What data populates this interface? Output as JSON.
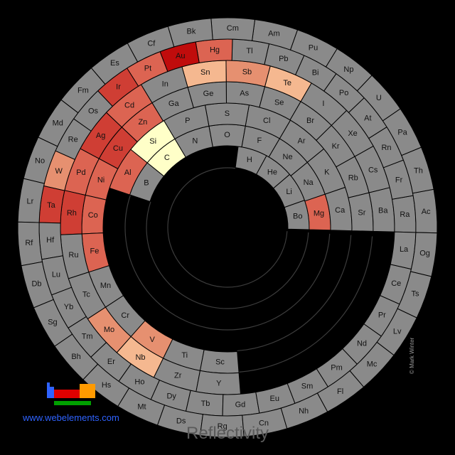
{
  "title": "Reflectivity",
  "site": "www.webelements.com",
  "credit": "© Mark Winter",
  "colors": {
    "no_data": "#8a8a8a",
    "level_1": "#ffffc8",
    "level_2": "#f5b890",
    "level_3": "#e69070",
    "level_4": "#dc6452",
    "level_5": "#cf3e34",
    "level_6": "#c00c0c"
  },
  "icons": [
    "periodic-table-logo-icon"
  ],
  "rings": [
    [
      "Bo",
      "Li",
      "He",
      "H"
    ],
    [
      "Mg",
      "Na",
      "Ne",
      "F",
      "O",
      "N",
      "C",
      "B"
    ],
    [
      "Ca",
      "K",
      "Ar",
      "Cl",
      "S",
      "P",
      "Si",
      "Al"
    ],
    [
      "Sr",
      "Rb",
      "Kr",
      "Br",
      "Se",
      "As",
      "Ge",
      "Ga",
      "Zn",
      "Cu",
      "Ni",
      "Co",
      "Fe",
      "Mn",
      "Cr",
      "V",
      "Ti",
      "Sc"
    ],
    [
      "Ba",
      "Cs",
      "Xe",
      "I",
      "Te",
      "Sb",
      "Sn",
      "In",
      "Cd",
      "Ag",
      "Pd",
      "Rh",
      "Ru",
      "Tc",
      "Mo",
      "Nb",
      "Zr",
      "Y"
    ],
    [
      "Ra",
      "Fr",
      "Rn",
      "At",
      "Po",
      "Bi",
      "Pb",
      "Tl",
      "Hg",
      "Au",
      "Pt",
      "Ir",
      "Os",
      "Re",
      "W",
      "Ta",
      "Hf",
      "Lu",
      "Yb",
      "Tm",
      "Er",
      "Ho",
      "Dy",
      "Tb",
      "Gd",
      "Eu",
      "Sm",
      "Pm",
      "Nd",
      "Pr",
      "Ce",
      "La"
    ],
    [
      "Ac",
      "Th",
      "Pa",
      "U",
      "Np",
      "Pu",
      "Am",
      "Cm",
      "Bk",
      "Cf",
      "Es",
      "Fm",
      "Md",
      "No",
      "Lr",
      "Rf",
      "Db",
      "Sg",
      "Bh",
      "Hs",
      "Mt",
      "Ds",
      "Rg",
      "Cn",
      "Nh",
      "Fl",
      "Mc",
      "Lv",
      "Ts",
      "Og"
    ]
  ],
  "highlight": {
    "Mg": "level_4",
    "C": "level_1",
    "Si": "level_1",
    "Al": "level_4",
    "Te": "level_2",
    "Sb": "level_3",
    "Sn": "level_2",
    "Zn": "level_4",
    "Cu": "level_5",
    "Ni": "level_4",
    "Co": "level_4",
    "Fe": "level_4",
    "Cd": "level_4",
    "Ag": "level_5",
    "Pd": "level_4",
    "Rh": "level_5",
    "Mo": "level_3",
    "V": "level_3",
    "Nb": "level_2",
    "Hg": "level_4",
    "Au": "level_6",
    "Pt": "level_4",
    "Ir": "level_5",
    "W": "level_3",
    "Ta": "level_5"
  }
}
